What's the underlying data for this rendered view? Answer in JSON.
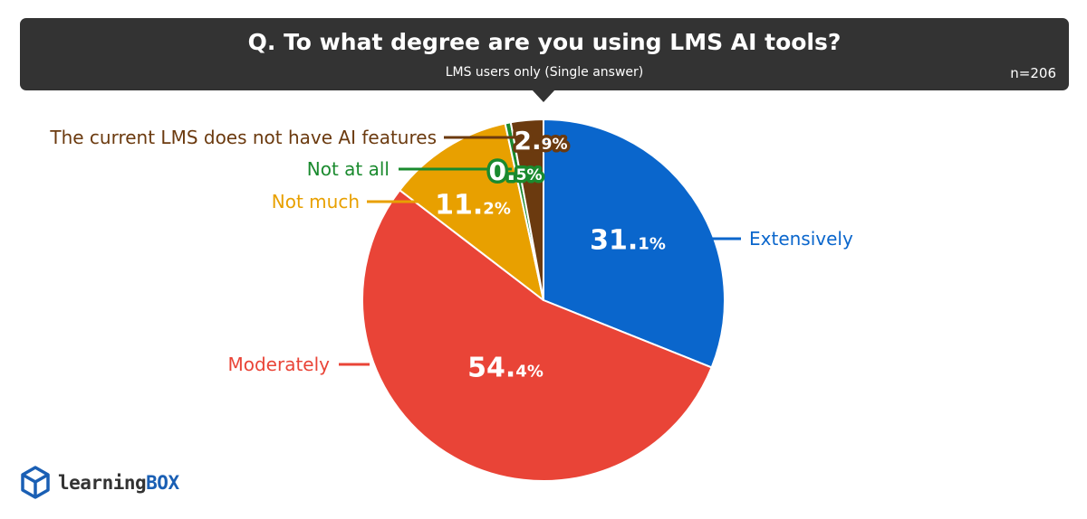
{
  "header": {
    "title": "Q. To what degree are you using LMS AI tools?",
    "subtitle": "LMS users only (Single answer)",
    "n": "n=206"
  },
  "chart_data": {
    "type": "pie",
    "start_angle_deg": 0,
    "direction": "clockwise",
    "slices": [
      {
        "label": "Extensively",
        "value": 31.1,
        "whole": "31.",
        "dec": "1%",
        "color": "#0a66cc"
      },
      {
        "label": "Moderately",
        "value": 54.4,
        "whole": "54.",
        "dec": "4%",
        "color": "#e94437"
      },
      {
        "label": "Not much",
        "value": 11.2,
        "whole": "11.",
        "dec": "2%",
        "color": "#e8a000"
      },
      {
        "label": "Not at all",
        "value": 0.5,
        "whole": "0.",
        "dec": "5%",
        "color": "#1a8a2e"
      },
      {
        "label": "The current LMS does not have AI features",
        "value": 2.9,
        "whole": "2.",
        "dec": "9%",
        "color": "#6b3a0f"
      }
    ]
  },
  "logo": {
    "brand_a": "learning",
    "brand_b": "BOX",
    "icon": "cube-icon"
  }
}
